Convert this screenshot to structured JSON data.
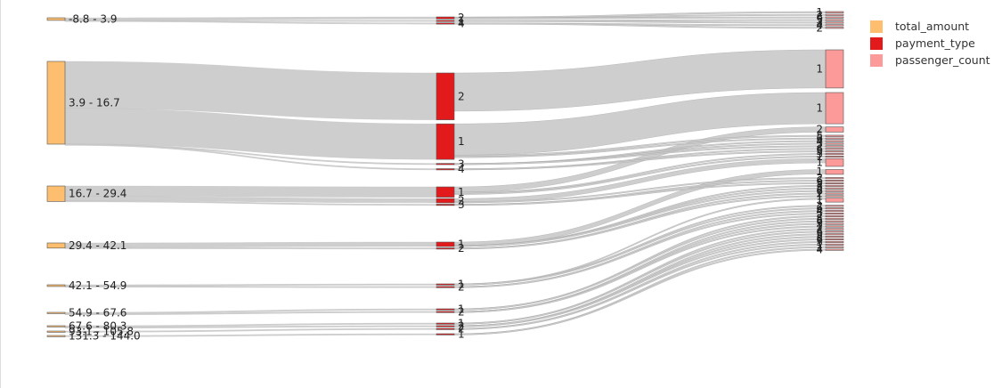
{
  "chart_data": {
    "type": "sankey",
    "legend": {
      "position": "top-right",
      "entries": [
        {
          "name": "total_amount",
          "color": "#fdbf6f"
        },
        {
          "name": "payment_type",
          "color": "#e31a1c"
        },
        {
          "name": "passenger_count",
          "color": "#fb9a99"
        }
      ]
    },
    "colors": {
      "link": "#cccccc",
      "node_border": "#555555"
    },
    "columns": [
      {
        "name": "total_amount",
        "nodes": [
          {
            "label": "-8.8 - 3.9",
            "value": 1.5
          },
          {
            "label": "3.9 - 16.7",
            "value": 48
          },
          {
            "label": "16.7 - 29.4",
            "value": 9
          },
          {
            "label": "29.4 - 42.1",
            "value": 3
          },
          {
            "label": "42.1 - 54.9",
            "value": 1
          },
          {
            "label": "54.9 - 67.6",
            "value": 0.4
          },
          {
            "label": "67.6 - 80.3",
            "value": 0.2
          },
          {
            "label": "93.1 - 105.8",
            "value": 0.1
          },
          {
            "label": "131.3 - 144.0",
            "value": 0.1
          }
        ]
      },
      {
        "name": "payment_type",
        "groups": [
          [
            {
              "label": "2",
              "value": 1.2
            },
            {
              "label": "1",
              "value": 0.2
            },
            {
              "label": "4",
              "value": 0.1
            }
          ],
          [
            {
              "label": "2",
              "value": 27
            },
            {
              "label": "1",
              "value": 20.5
            },
            {
              "label": "3",
              "value": 0.3
            },
            {
              "label": "4",
              "value": 0.2
            }
          ],
          [
            {
              "label": "1",
              "value": 6
            },
            {
              "label": "2",
              "value": 2.5
            },
            {
              "label": "3",
              "value": 0.5
            }
          ],
          [
            {
              "label": "1",
              "value": 2.6
            },
            {
              "label": "2",
              "value": 0.4
            }
          ],
          [
            {
              "label": "1",
              "value": 0.5
            },
            {
              "label": "2",
              "value": 0.5
            }
          ],
          [
            {
              "label": "1",
              "value": 0.2
            },
            {
              "label": "2",
              "value": 0.2
            }
          ],
          [
            {
              "label": "1",
              "value": 0.1
            },
            {
              "label": "2",
              "value": 0.1
            }
          ],
          [
            {
              "label": "2",
              "value": 0.1
            }
          ],
          [
            {
              "label": "1",
              "value": 0.1
            }
          ]
        ]
      },
      {
        "name": "passenger_count",
        "nodes": [
          {
            "label": "1",
            "value": 0.8
          },
          {
            "label": "2",
            "value": 0.5
          },
          {
            "label": "6",
            "value": 0.1
          },
          {
            "label": "5",
            "value": 0.1
          },
          {
            "label": "3",
            "value": 0.1
          },
          {
            "label": "4",
            "value": 0.1
          },
          {
            "label": "2",
            "value": 0.1
          },
          {
            "label": "1",
            "value": 22
          },
          {
            "label": "1",
            "value": 18
          },
          {
            "label": "2",
            "value": 3
          },
          {
            "label": "5",
            "value": 0.8
          },
          {
            "label": "6",
            "value": 0.6
          },
          {
            "label": "4",
            "value": 0.5
          },
          {
            "label": "3",
            "value": 0.7
          },
          {
            "label": "2",
            "value": 0.6
          },
          {
            "label": "6",
            "value": 0.3
          },
          {
            "label": "3",
            "value": 0.3
          },
          {
            "label": "5",
            "value": 0.3
          },
          {
            "label": "1",
            "value": 0.3
          },
          {
            "label": "1",
            "value": 4.5
          },
          {
            "label": "1",
            "value": 2.8
          },
          {
            "label": "2",
            "value": 0.4
          },
          {
            "label": "6",
            "value": 0.2
          },
          {
            "label": "5",
            "value": 0.2
          },
          {
            "label": "3",
            "value": 0.2
          },
          {
            "label": "5",
            "value": 0.1
          },
          {
            "label": "6",
            "value": 0.1
          },
          {
            "label": "2",
            "value": 0.1
          },
          {
            "label": "1",
            "value": 0.1
          },
          {
            "label": "1",
            "value": 2.3
          },
          {
            "label": "2",
            "value": 0.3
          },
          {
            "label": "6",
            "value": 0.1
          },
          {
            "label": "4",
            "value": 0.1
          },
          {
            "label": "5",
            "value": 0.1
          },
          {
            "label": "2",
            "value": 0.1
          },
          {
            "label": "5",
            "value": 0.1
          },
          {
            "label": "6",
            "value": 0.1
          },
          {
            "label": "3",
            "value": 0.1
          },
          {
            "label": "1",
            "value": 0.1
          },
          {
            "label": "2",
            "value": 0.1
          },
          {
            "label": "6",
            "value": 0.1
          },
          {
            "label": "3",
            "value": 0.1
          },
          {
            "label": "5",
            "value": 0.1
          },
          {
            "label": "6",
            "value": 0.1
          },
          {
            "label": "3",
            "value": 0.1
          },
          {
            "label": "1",
            "value": 0.1
          },
          {
            "label": "1",
            "value": 0.1
          },
          {
            "label": "4",
            "value": 0.1
          }
        ]
      }
    ]
  }
}
